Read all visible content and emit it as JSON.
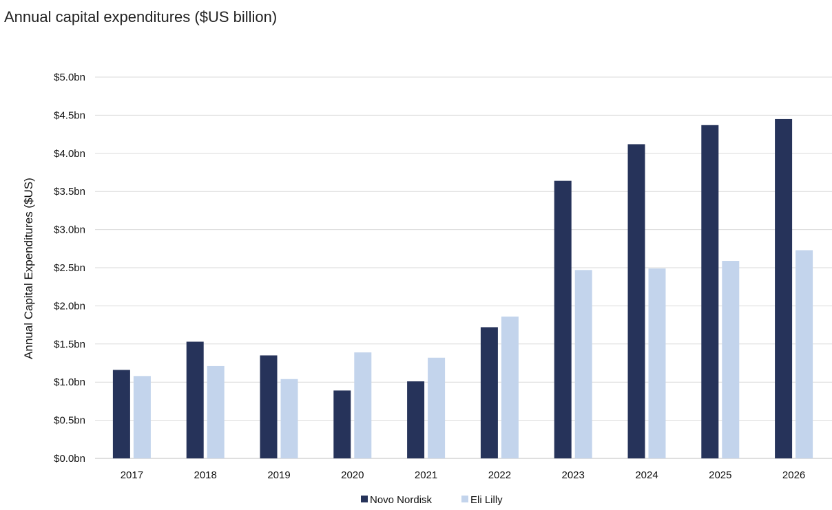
{
  "subtitle": "Annual capital expenditures ($US billion)",
  "chart_data": {
    "type": "bar",
    "title": "",
    "subtitle": "Annual capital expenditures ($US billion)",
    "xlabel": "",
    "ylabel": "Annual Capital Expenditures ($US)",
    "ylim": [
      0,
      5.0
    ],
    "yticks": [
      0,
      0.5,
      1.0,
      1.5,
      2.0,
      2.5,
      3.0,
      3.5,
      4.0,
      4.5,
      5.0
    ],
    "ytick_labels": [
      "$0.0bn",
      "$0.5bn",
      "$1.0bn",
      "$1.5bn",
      "$2.0bn",
      "$2.5bn",
      "$3.0bn",
      "$3.5bn",
      "$4.0bn",
      "$4.5bn",
      "$5.0bn"
    ],
    "categories": [
      "2017",
      "2018",
      "2019",
      "2020",
      "2021",
      "2022",
      "2023",
      "2024",
      "2025",
      "2026"
    ],
    "series": [
      {
        "name": "Novo Nordisk",
        "color": "#26335a",
        "values": [
          1.16,
          1.53,
          1.35,
          0.89,
          1.01,
          1.72,
          3.64,
          4.12,
          4.37,
          4.45
        ]
      },
      {
        "name": "Eli Lilly",
        "color": "#c3d4ec",
        "values": [
          1.08,
          1.21,
          1.04,
          1.39,
          1.32,
          1.86,
          2.47,
          2.49,
          2.59,
          2.73
        ]
      }
    ],
    "grid": true,
    "legend_position": "bottom-center"
  }
}
